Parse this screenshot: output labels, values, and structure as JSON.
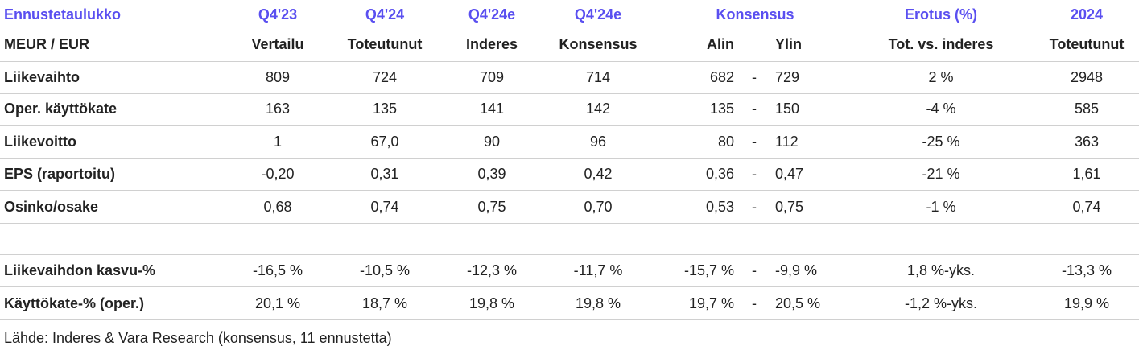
{
  "header": {
    "row1": [
      "Ennustetaulukko",
      "Q4'23",
      "Q4'24",
      "Q4'24e",
      "Q4'24e",
      "Konsensus",
      "Erotus (%)",
      "2024"
    ],
    "row2": [
      "MEUR / EUR",
      "Vertailu",
      "Toteutunut",
      "Inderes",
      "Konsensus",
      "Alin",
      "Ylin",
      "Tot. vs. inderes",
      "Toteutunut"
    ]
  },
  "table": {
    "rows": [
      {
        "label": "Liikevaihto",
        "cells": [
          "809",
          "724",
          "709",
          "714",
          "682",
          "-",
          "729",
          "2 %",
          "2948"
        ]
      },
      {
        "label": "Oper. käyttökate",
        "cells": [
          "163",
          "135",
          "141",
          "142",
          "135",
          "-",
          "150",
          "-4 %",
          "585"
        ]
      },
      {
        "label": "Liikevoitto",
        "cells": [
          "1",
          "67,0",
          "90",
          "96",
          "80",
          "-",
          "112",
          "-25 %",
          "363"
        ]
      },
      {
        "label": "EPS (raportoitu)",
        "cells": [
          "-0,20",
          "0,31",
          "0,39",
          "0,42",
          "0,36",
          "-",
          "0,47",
          "-21 %",
          "1,61"
        ]
      },
      {
        "label": "Osinko/osake",
        "cells": [
          "0,68",
          "0,74",
          "0,75",
          "0,70",
          "0,53",
          "-",
          "0,75",
          "-1 %",
          "0,74"
        ]
      }
    ],
    "ratio_rows": [
      {
        "label": "Liikevaihdon kasvu-%",
        "cells": [
          "-16,5 %",
          "-10,5 %",
          "-12,3 %",
          "-11,7 %",
          "-15,7 %",
          "-",
          "-9,9 %",
          "1,8 %-yks.",
          "-13,3 %"
        ]
      },
      {
        "label": "Käyttökate-% (oper.)",
        "cells": [
          "20,1 %",
          "18,7 %",
          "19,8 %",
          "19,8 %",
          "19,7 %",
          "-",
          "20,5 %",
          "-1,2 %-yks.",
          "19,9 %"
        ]
      }
    ]
  },
  "footer": {
    "source": "Lähde: Inderes & Vara Research  (konsensus, 11 ennustetta)"
  }
}
